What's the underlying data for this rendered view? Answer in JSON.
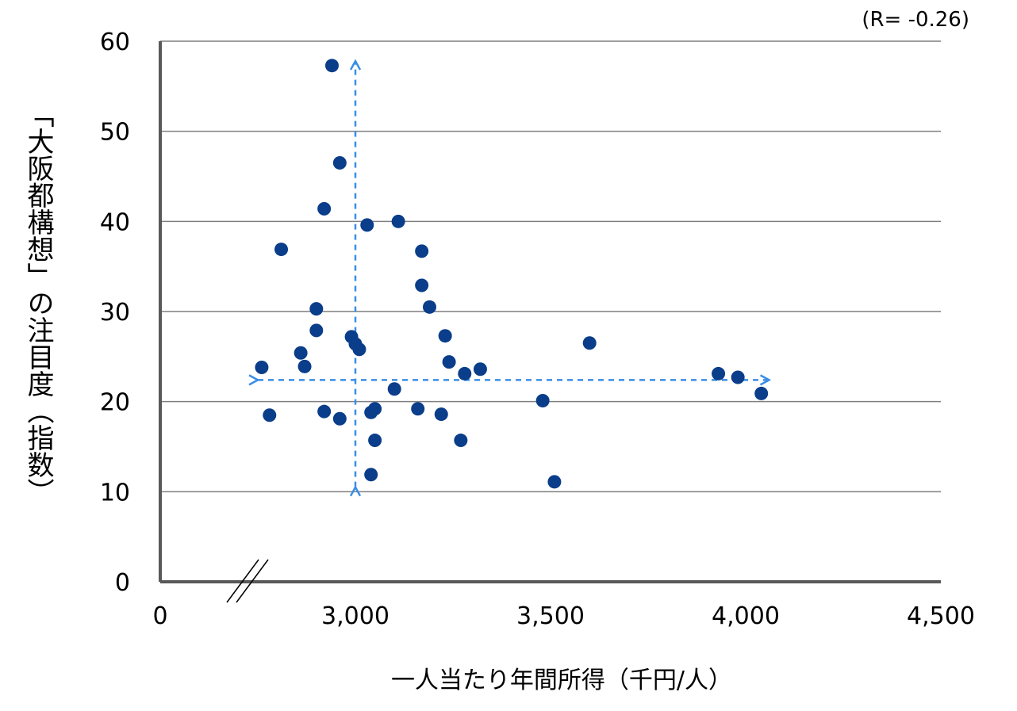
{
  "chart_data": {
    "type": "scatter",
    "title": "",
    "annotation": "(R= -0.26)",
    "xlabel": "一人当たり年間所得（千円/人）",
    "ylabel": "「大阪都構想」の注目度（指数）",
    "xlim": [
      0,
      4500
    ],
    "ylim": [
      0,
      60
    ],
    "x_axis_break": true,
    "x_ticks": [
      {
        "value": 0,
        "label": "0"
      },
      {
        "value": 3000,
        "label": "3,000"
      },
      {
        "value": 3500,
        "label": "3,500"
      },
      {
        "value": 4000,
        "label": "4,000"
      },
      {
        "value": 4500,
        "label": "4,500"
      }
    ],
    "y_ticks": [
      {
        "value": 0,
        "label": "0"
      },
      {
        "value": 10,
        "label": "10"
      },
      {
        "value": 20,
        "label": "20"
      },
      {
        "value": 30,
        "label": "30"
      },
      {
        "value": 40,
        "label": "40"
      },
      {
        "value": 50,
        "label": "50"
      },
      {
        "value": 60,
        "label": "60"
      }
    ],
    "grid": true,
    "point_color": "#0a3d8a",
    "arrow_color": "#3a8ee6",
    "points": [
      {
        "x": 2940,
        "y": 57.3
      },
      {
        "x": 2960,
        "y": 46.5
      },
      {
        "x": 2920,
        "y": 41.4
      },
      {
        "x": 3030,
        "y": 39.6
      },
      {
        "x": 3110,
        "y": 40.0
      },
      {
        "x": 2810,
        "y": 36.9
      },
      {
        "x": 3170,
        "y": 36.7
      },
      {
        "x": 3170,
        "y": 32.9
      },
      {
        "x": 3190,
        "y": 30.5
      },
      {
        "x": 2900,
        "y": 30.3
      },
      {
        "x": 2900,
        "y": 27.9
      },
      {
        "x": 2990,
        "y": 27.2
      },
      {
        "x": 3000,
        "y": 26.4
      },
      {
        "x": 3010,
        "y": 25.8
      },
      {
        "x": 3230,
        "y": 27.3
      },
      {
        "x": 3600,
        "y": 26.5
      },
      {
        "x": 2860,
        "y": 25.4
      },
      {
        "x": 2870,
        "y": 23.9
      },
      {
        "x": 2760,
        "y": 23.8
      },
      {
        "x": 3240,
        "y": 24.4
      },
      {
        "x": 3280,
        "y": 23.1
      },
      {
        "x": 3320,
        "y": 23.6
      },
      {
        "x": 3930,
        "y": 23.1
      },
      {
        "x": 3980,
        "y": 22.7
      },
      {
        "x": 3100,
        "y": 21.4
      },
      {
        "x": 3480,
        "y": 20.1
      },
      {
        "x": 4040,
        "y": 20.9
      },
      {
        "x": 2780,
        "y": 18.5
      },
      {
        "x": 2920,
        "y": 18.9
      },
      {
        "x": 2960,
        "y": 18.1
      },
      {
        "x": 3040,
        "y": 18.8
      },
      {
        "x": 3050,
        "y": 19.2
      },
      {
        "x": 3160,
        "y": 19.2
      },
      {
        "x": 3220,
        "y": 18.6
      },
      {
        "x": 3050,
        "y": 15.7
      },
      {
        "x": 3270,
        "y": 15.7
      },
      {
        "x": 3040,
        "y": 11.9
      },
      {
        "x": 3510,
        "y": 11.1
      }
    ],
    "mean_arrows": {
      "vertical_at_x": 3000,
      "vertical_y_range": [
        10.5,
        57.8
      ],
      "horizontal_at_y": 22.4,
      "horizontal_x_range": [
        2750,
        4060
      ]
    }
  }
}
